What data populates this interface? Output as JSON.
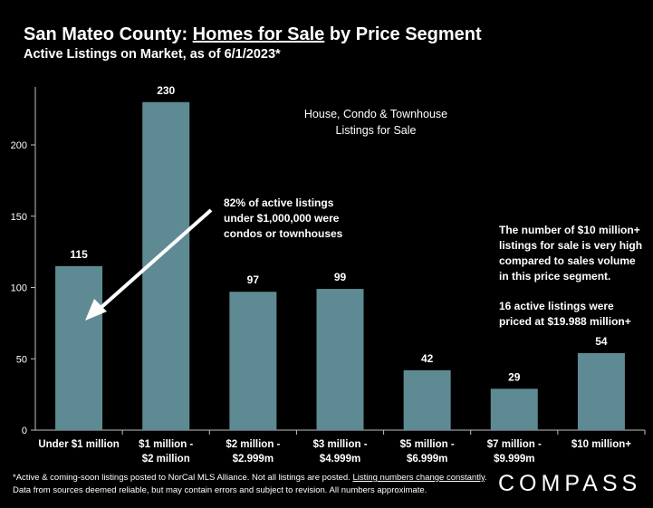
{
  "header": {
    "title_prefix": "San Mateo County: ",
    "title_emph": "Homes for Sale",
    "title_suffix": " by Price Segment",
    "subtitle": "Active Listings on Market, as of 6/1/2023*"
  },
  "chart_data": {
    "type": "bar",
    "categories": [
      [
        "Under $1 million"
      ],
      [
        "$1 million -",
        "$2 million"
      ],
      [
        "$2 million -",
        "$2.999m"
      ],
      [
        "$3 million -",
        "$4.999m"
      ],
      [
        "$5 million -",
        "$6.999m"
      ],
      [
        "$7 million -",
        "$9.999m"
      ],
      [
        "$10 million+"
      ]
    ],
    "values": [
      115,
      230,
      97,
      99,
      42,
      29,
      54
    ],
    "ylim": [
      0,
      240
    ],
    "yticks": [
      0,
      50,
      100,
      150,
      200
    ],
    "grid": false,
    "bar_color": "#5e8a94",
    "annotations": {
      "series_box": [
        "House, Condo & Townhouse",
        "Listings for Sale"
      ],
      "arrow_note": [
        "82% of active listings",
        "under $1,000,000 were",
        "condos or townhouses"
      ],
      "note_ten_million": [
        "The number of $10 million+",
        "listings for sale is very high",
        "compared to sales volume",
        "in this price segment."
      ],
      "note_sixteen": [
        "16 active listings were",
        "priced at $19.988 million+"
      ]
    }
  },
  "footer": {
    "note_a": "*Active & coming-soon listings posted to NorCal MLS Alliance. Not all listings are posted. ",
    "note_link": "Listing numbers change constantly",
    "note_b": ". Data from sources deemed reliable, but may contain errors and subject to revision. All numbers approximate.",
    "logo_text": "COMPASS"
  },
  "colors": {
    "background": "#000000",
    "text": "#ffffff",
    "bar": "#5e8a94"
  }
}
